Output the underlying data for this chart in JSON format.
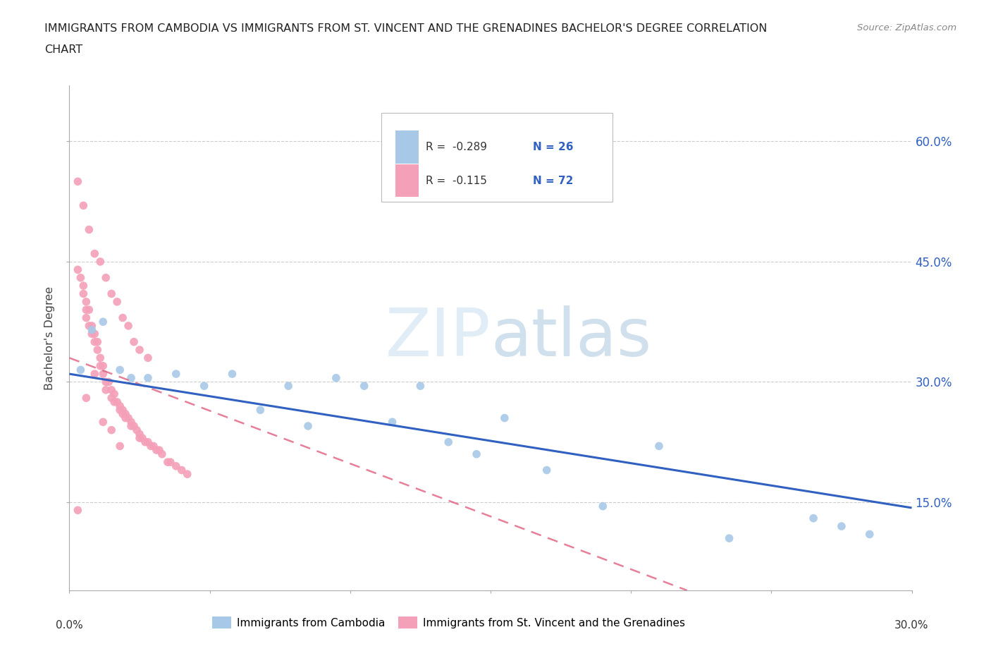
{
  "title_line1": "IMMIGRANTS FROM CAMBODIA VS IMMIGRANTS FROM ST. VINCENT AND THE GRENADINES BACHELOR'S DEGREE CORRELATION",
  "title_line2": "CHART",
  "source": "Source: ZipAtlas.com",
  "ylabel": "Bachelor's Degree",
  "yticks_labels": [
    "15.0%",
    "30.0%",
    "45.0%",
    "60.0%"
  ],
  "ytick_vals": [
    0.15,
    0.3,
    0.45,
    0.6
  ],
  "xlim": [
    0.0,
    0.3
  ],
  "ylim": [
    0.04,
    0.67
  ],
  "color_blue": "#a8c8e8",
  "color_pink": "#f4a0b8",
  "color_blue_line": "#3060c0",
  "color_pink_line": "#e06080",
  "watermark_color": "#d0e4f4",
  "cambodia_x": [
    0.004,
    0.008,
    0.012,
    0.018,
    0.022,
    0.028,
    0.038,
    0.048,
    0.058,
    0.068,
    0.078,
    0.085,
    0.095,
    0.105,
    0.115,
    0.125,
    0.135,
    0.145,
    0.155,
    0.17,
    0.19,
    0.21,
    0.235,
    0.265,
    0.275,
    0.285
  ],
  "cambodia_y": [
    0.315,
    0.365,
    0.375,
    0.315,
    0.305,
    0.305,
    0.31,
    0.295,
    0.31,
    0.265,
    0.295,
    0.245,
    0.305,
    0.295,
    0.25,
    0.295,
    0.225,
    0.21,
    0.255,
    0.19,
    0.145,
    0.22,
    0.105,
    0.13,
    0.12,
    0.11
  ],
  "stvincent_x": [
    0.003,
    0.004,
    0.005,
    0.005,
    0.006,
    0.006,
    0.006,
    0.007,
    0.007,
    0.008,
    0.008,
    0.009,
    0.009,
    0.01,
    0.01,
    0.011,
    0.011,
    0.012,
    0.012,
    0.013,
    0.013,
    0.014,
    0.015,
    0.015,
    0.016,
    0.016,
    0.017,
    0.018,
    0.018,
    0.019,
    0.019,
    0.02,
    0.02,
    0.021,
    0.022,
    0.022,
    0.023,
    0.024,
    0.025,
    0.025,
    0.026,
    0.027,
    0.028,
    0.029,
    0.03,
    0.031,
    0.032,
    0.033,
    0.035,
    0.036,
    0.038,
    0.04,
    0.042,
    0.003,
    0.005,
    0.007,
    0.009,
    0.011,
    0.013,
    0.015,
    0.017,
    0.019,
    0.021,
    0.023,
    0.025,
    0.028,
    0.003,
    0.006,
    0.009,
    0.012,
    0.015,
    0.018
  ],
  "stvincent_y": [
    0.44,
    0.43,
    0.42,
    0.41,
    0.4,
    0.39,
    0.38,
    0.39,
    0.37,
    0.37,
    0.36,
    0.36,
    0.35,
    0.35,
    0.34,
    0.33,
    0.32,
    0.32,
    0.31,
    0.3,
    0.29,
    0.3,
    0.29,
    0.28,
    0.285,
    0.275,
    0.275,
    0.27,
    0.265,
    0.265,
    0.26,
    0.26,
    0.255,
    0.255,
    0.25,
    0.245,
    0.245,
    0.24,
    0.235,
    0.23,
    0.23,
    0.225,
    0.225,
    0.22,
    0.22,
    0.215,
    0.215,
    0.21,
    0.2,
    0.2,
    0.195,
    0.19,
    0.185,
    0.55,
    0.52,
    0.49,
    0.46,
    0.45,
    0.43,
    0.41,
    0.4,
    0.38,
    0.37,
    0.35,
    0.34,
    0.33,
    0.14,
    0.28,
    0.31,
    0.25,
    0.24,
    0.22
  ],
  "blue_line_x0": 0.0,
  "blue_line_y0": 0.31,
  "blue_line_x1": 0.3,
  "blue_line_y1": 0.143,
  "pink_line_x0": 0.0,
  "pink_line_y0": 0.33,
  "pink_line_x1": 0.22,
  "pink_line_y1": 0.04
}
